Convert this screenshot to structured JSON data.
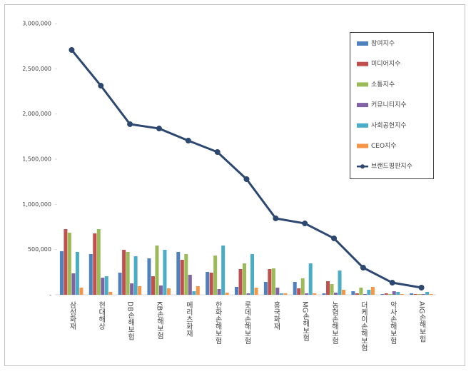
{
  "chart_data": {
    "type": "bar",
    "categories": [
      "삼성화재",
      "현대해상",
      "DB손해보험",
      "KB손해보험",
      "메리츠화재",
      "한화손해보험",
      "롯데손해보험",
      "흥국화재",
      "MG손해보험",
      "농협손해보험",
      "더케이손해보험",
      "악사손해보험",
      "AIG손해보험"
    ],
    "ylim": [
      0,
      3000000
    ],
    "yticks": [
      {
        "value": 0,
        "label": "-"
      },
      {
        "value": 500000,
        "label": "500,000"
      },
      {
        "value": 1000000,
        "label": "1,000,000"
      },
      {
        "value": 1500000,
        "label": "1,500,000"
      },
      {
        "value": 2000000,
        "label": "2,000,000"
      },
      {
        "value": 2500000,
        "label": "2,500,000"
      },
      {
        "value": 3000000,
        "label": "3,000,000"
      }
    ],
    "legend": "top-right",
    "series": [
      {
        "name": "참여지수",
        "color": "#4f81bd",
        "values": [
          482000,
          450000,
          245000,
          403000,
          474000,
          253000,
          87000,
          142000,
          142000,
          16000,
          39000,
          8000,
          16000
        ]
      },
      {
        "name": "미디어지수",
        "color": "#c0504d",
        "values": [
          726000,
          679000,
          497000,
          205000,
          387000,
          245000,
          284000,
          284000,
          71000,
          150000,
          16000,
          16000,
          8000
        ]
      },
      {
        "name": "소통지수",
        "color": "#9bbb59",
        "values": [
          687000,
          726000,
          474000,
          545000,
          450000,
          434000,
          347000,
          292000,
          182000,
          118000,
          79000,
          8000,
          8000
        ]
      },
      {
        "name": "커뮤니티지수",
        "color": "#8064a2",
        "values": [
          237000,
          189000,
          126000,
          103000,
          221000,
          63000,
          16000,
          79000,
          16000,
          24000,
          8000,
          39000,
          8000
        ]
      },
      {
        "name": "사회공헌지수",
        "color": "#4bacc6",
        "values": [
          474000,
          205000,
          426000,
          497000,
          39000,
          545000,
          450000,
          16000,
          347000,
          268000,
          55000,
          32000,
          32000
        ]
      },
      {
        "name": "CEO지수",
        "color": "#f79646",
        "values": [
          79000,
          32000,
          95000,
          71000,
          95000,
          24000,
          79000,
          16000,
          16000,
          55000,
          87000,
          8000,
          8000
        ]
      },
      {
        "name": "브랜드평판지수",
        "color": "#2c4770",
        "type": "line",
        "values": [
          2708000,
          2313000,
          1887000,
          1839000,
          1705000,
          1579000,
          1279000,
          845000,
          789000,
          624000,
          300000,
          134000,
          79000
        ]
      }
    ]
  }
}
